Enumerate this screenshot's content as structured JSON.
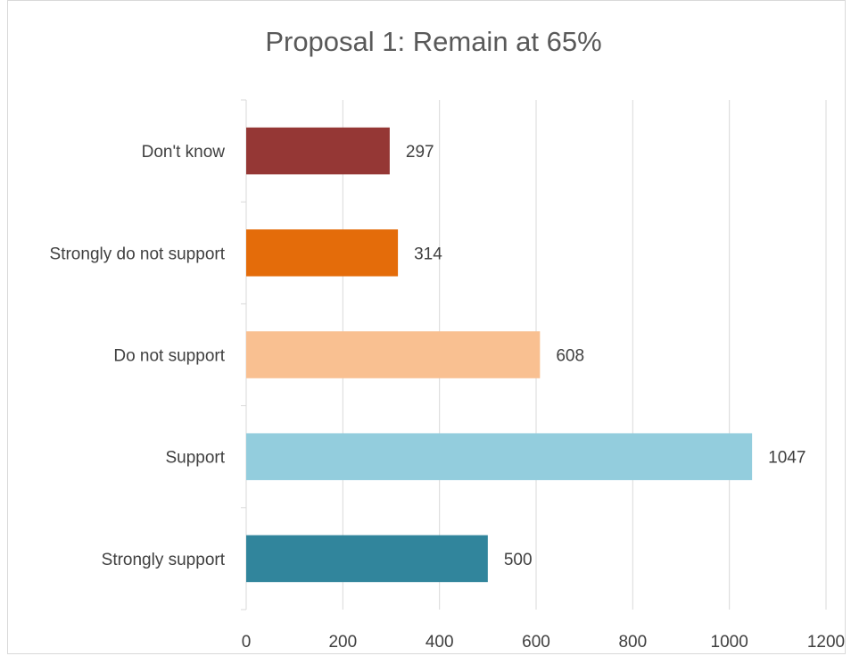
{
  "chart_data": {
    "type": "bar",
    "orientation": "horizontal",
    "title": "Proposal 1: Remain at 65%",
    "categories": [
      "Don't know",
      "Strongly do not support",
      "Do not support",
      "Support",
      "Strongly support"
    ],
    "values": [
      297,
      314,
      608,
      1047,
      500
    ],
    "colors": [
      "#953735",
      "#E46C0A",
      "#F9C091",
      "#93CDDD",
      "#31859C"
    ],
    "xlim": [
      0,
      1200
    ],
    "xticks": [
      "0",
      "200",
      "400",
      "600",
      "800",
      "1000",
      "1200"
    ],
    "xlabel": "",
    "ylabel": "",
    "grid": true,
    "legend": "none"
  }
}
